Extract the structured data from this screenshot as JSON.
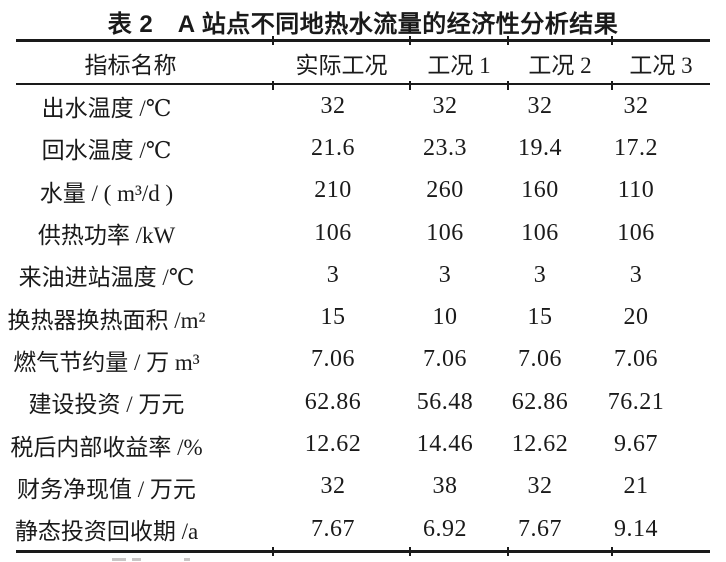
{
  "title": "表 2　A 站点不同地热水流量的经济性分析结果",
  "colors": {
    "text": "#1a1a1a",
    "rule": "#1a1a1a",
    "background": "#ffffff"
  },
  "table": {
    "columns": [
      "指标名称",
      "实际工况",
      "工况 1",
      "工况 2",
      "工况 3"
    ],
    "rows": [
      {
        "label": "出水温度 /℃",
        "values": [
          "32",
          "32",
          "32",
          "32"
        ]
      },
      {
        "label": "回水温度 /℃",
        "values": [
          "21.6",
          "23.3",
          "19.4",
          "17.2"
        ]
      },
      {
        "label": "水量 / ( m³/d )",
        "values": [
          "210",
          "260",
          "160",
          "110"
        ]
      },
      {
        "label": "供热功率 /kW",
        "values": [
          "106",
          "106",
          "106",
          "106"
        ]
      },
      {
        "label": "来油进站温度 /℃",
        "values": [
          "3",
          "3",
          "3",
          "3"
        ]
      },
      {
        "label": "换热器换热面积 /m²",
        "values": [
          "15",
          "10",
          "15",
          "20"
        ]
      },
      {
        "label": "燃气节约量 / 万 m³",
        "values": [
          "7.06",
          "7.06",
          "7.06",
          "7.06"
        ]
      },
      {
        "label": "建设投资 / 万元",
        "values": [
          "62.86",
          "56.48",
          "62.86",
          "76.21"
        ]
      },
      {
        "label": "税后内部收益率 /%",
        "values": [
          "12.62",
          "14.46",
          "12.62",
          "9.67"
        ]
      },
      {
        "label": "财务净现值 / 万元",
        "values": [
          "32",
          "38",
          "32",
          "21"
        ]
      },
      {
        "label": "静态投资回收期 /a",
        "values": [
          "7.67",
          "6.92",
          "7.67",
          "9.14"
        ]
      }
    ]
  }
}
